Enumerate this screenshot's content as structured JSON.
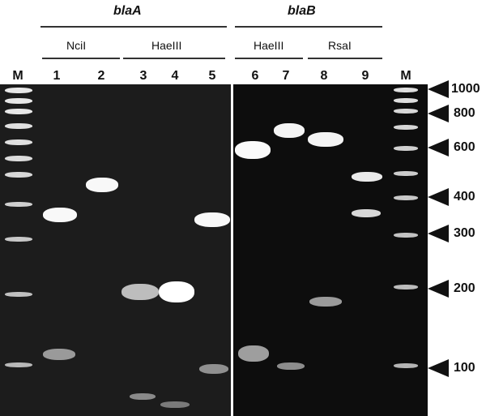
{
  "headers": {
    "gene_a": "blaA",
    "gene_b": "blaB",
    "enzymes": [
      "NciI",
      "HaeIII",
      "HaeIII",
      "RsaI"
    ]
  },
  "lane_labels": [
    "M",
    "1",
    "2",
    "3",
    "4",
    "5",
    "6",
    "7",
    "8",
    "9",
    "M"
  ],
  "size_markers": [
    "1000",
    "800",
    "600",
    "400",
    "300",
    "200",
    "100"
  ],
  "colors": {
    "gel": "#0c0c0c",
    "band": "#f2f2f2",
    "text": "#111111"
  }
}
